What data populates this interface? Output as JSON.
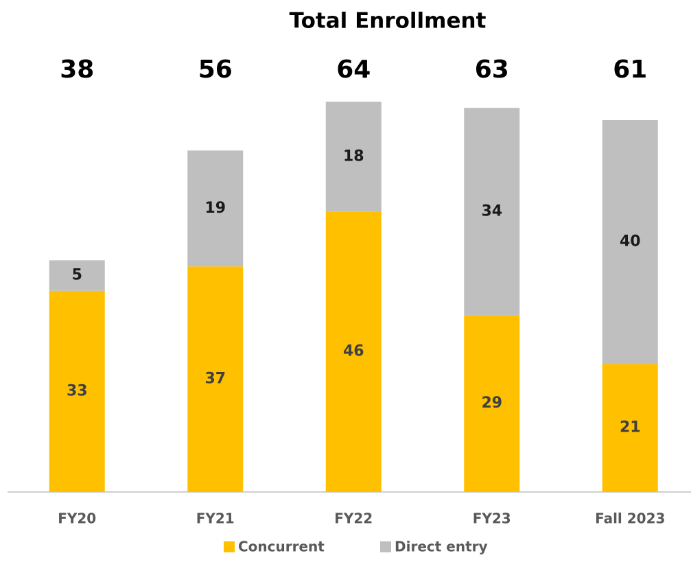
{
  "chart_data": {
    "type": "stacked_bar",
    "title": "Total Enrollment",
    "categories": [
      "FY20",
      "FY21",
      "FY22",
      "FY23",
      "Fall 2023"
    ],
    "series": [
      {
        "name": "Concurrent",
        "color": "#ffc000",
        "values": [
          33,
          37,
          46,
          29,
          21
        ]
      },
      {
        "name": "Direct entry",
        "color": "#bfbfbf",
        "values": [
          5,
          19,
          18,
          34,
          40
        ]
      }
    ],
    "totals": [
      38,
      56,
      64,
      63,
      61
    ],
    "ylim": [
      0,
      70
    ]
  }
}
